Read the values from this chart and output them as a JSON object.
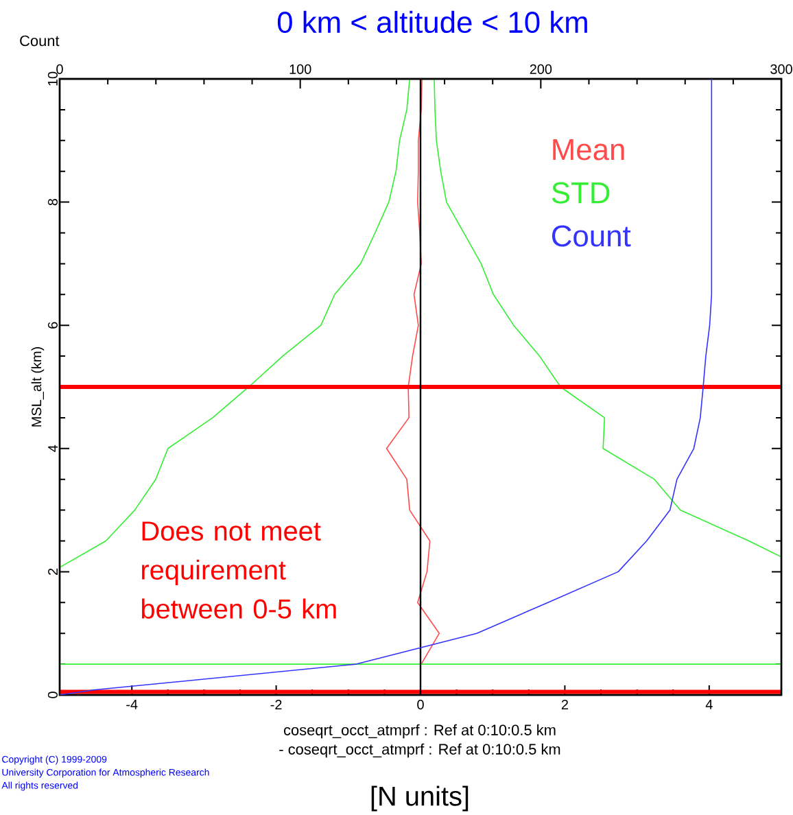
{
  "chart_data": {
    "type": "line",
    "title": "0 km < altitude < 10 km",
    "xlabel": "[N units]",
    "ylabel": "MSL_alt (km)",
    "x2label": "Count",
    "xlim": [
      -5,
      5
    ],
    "xticks": [
      -4,
      -2,
      0,
      2,
      4
    ],
    "ylim": [
      0,
      10
    ],
    "yticks": [
      0,
      2,
      4,
      6,
      8,
      10
    ],
    "x2lim": [
      0,
      300
    ],
    "x2ticks": [
      0,
      100,
      200,
      300
    ],
    "legend": "right",
    "series": [
      {
        "name": "Mean",
        "color": "#ff4a4a",
        "x": [
          0.02,
          0.01,
          -0.03,
          -0.03,
          -0.04,
          -0.01,
          0.01,
          -0.09,
          -0.03,
          -0.11,
          -0.17,
          -0.16,
          -0.47,
          -0.19,
          -0.15,
          0.13,
          0.09,
          -0.04,
          0.26,
          0.01
        ],
        "values": [
          10,
          9.5,
          9,
          8.5,
          8,
          7.5,
          7,
          6.5,
          6,
          5.5,
          5,
          4.5,
          4,
          3.5,
          3,
          2.5,
          2,
          1.5,
          1,
          0.5
        ]
      },
      {
        "color": "#33ee33",
        "x": [
          -0.15,
          -0.19,
          -0.29,
          -0.34,
          -0.44,
          -0.63,
          -0.83,
          -1.19,
          -1.38,
          -1.91,
          -2.38,
          -2.88,
          -3.5,
          -3.67,
          -3.96,
          -4.36,
          -5,
          null,
          -5,
          5
        ],
        "values": [
          10,
          9.5,
          9,
          8.5,
          8,
          7.5,
          7,
          6.5,
          6,
          5.5,
          5,
          4.5,
          4,
          3.5,
          3,
          2.5,
          2.07,
          null,
          0.5,
          0.5
        ]
      },
      {
        "name": "STD",
        "color": "#33ee33",
        "x": [
          0.19,
          0.2,
          0.22,
          0.28,
          0.36,
          0.6,
          0.84,
          1.01,
          1.29,
          1.65,
          1.94,
          2.55,
          2.53,
          3.24,
          3.6,
          4.55,
          5
        ],
        "values": [
          10,
          9.5,
          9,
          8.5,
          8,
          7.5,
          7,
          6.5,
          6,
          5.5,
          5,
          4.5,
          4,
          3.5,
          3,
          2.5,
          2.24
        ]
      },
      {
        "name": "Count",
        "color": "#3333ff",
        "axis": "x2",
        "x": [
          271,
          271,
          271,
          271,
          271,
          271,
          271,
          271,
          270.2,
          268.6,
          267.5,
          266.3,
          263.6,
          256.6,
          253.7,
          244,
          232.2,
          203,
          173.4,
          123.3,
          14,
          0
        ],
        "values": [
          10,
          9.5,
          9,
          8.5,
          8,
          7.5,
          7,
          6.5,
          6,
          5.5,
          5,
          4.5,
          4,
          3.5,
          3,
          2.5,
          2,
          1.5,
          1,
          0.5,
          0.08,
          0
        ]
      }
    ],
    "ref_lines": [
      {
        "axis": "y",
        "value": 5,
        "color": "#ff0000"
      },
      {
        "axis": "y",
        "value": 0.05,
        "color": "#ff0000"
      },
      {
        "axis": "x",
        "value": 0,
        "color": "#000000"
      }
    ],
    "annotations": [
      "Does not meet requirement between 0-5 km",
      "coseqrt_occt_atmprf : Ref at 0:10:0.5 km",
      "- coseqrt_occt_atmprf : Ref at 0:10:0.5 km",
      "Copyright (C) 1999-2009",
      "University Corporation for Atmospheric Research",
      "All rights reserved"
    ]
  }
}
